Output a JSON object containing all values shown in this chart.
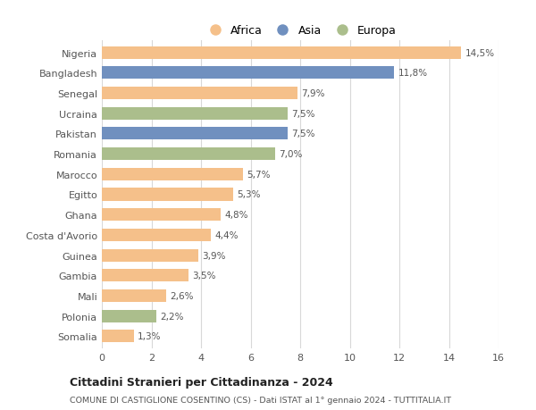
{
  "categories": [
    "Nigeria",
    "Bangladesh",
    "Senegal",
    "Ucraina",
    "Pakistan",
    "Romania",
    "Marocco",
    "Egitto",
    "Ghana",
    "Costa d'Avorio",
    "Guinea",
    "Gambia",
    "Mali",
    "Polonia",
    "Somalia"
  ],
  "values": [
    14.5,
    11.8,
    7.9,
    7.5,
    7.5,
    7.0,
    5.7,
    5.3,
    4.8,
    4.4,
    3.9,
    3.5,
    2.6,
    2.2,
    1.3
  ],
  "labels": [
    "14,5%",
    "11,8%",
    "7,9%",
    "7,5%",
    "7,5%",
    "7,0%",
    "5,7%",
    "5,3%",
    "4,8%",
    "4,4%",
    "3,9%",
    "3,5%",
    "2,6%",
    "2,2%",
    "1,3%"
  ],
  "continents": [
    "Africa",
    "Asia",
    "Africa",
    "Europa",
    "Asia",
    "Europa",
    "Africa",
    "Africa",
    "Africa",
    "Africa",
    "Africa",
    "Africa",
    "Africa",
    "Europa",
    "Africa"
  ],
  "colors": {
    "Africa": "#F5C08A",
    "Asia": "#7090BF",
    "Europa": "#ABBE8C"
  },
  "title": "Cittadini Stranieri per Cittadinanza - 2024",
  "subtitle": "COMUNE DI CASTIGLIONE COSENTINO (CS) - Dati ISTAT al 1° gennaio 2024 - TUTTITALIA.IT",
  "xlim": [
    0,
    16
  ],
  "xticks": [
    0,
    2,
    4,
    6,
    8,
    10,
    12,
    14,
    16
  ],
  "background_color": "#ffffff",
  "grid_color": "#d8d8d8",
  "bar_height": 0.62
}
